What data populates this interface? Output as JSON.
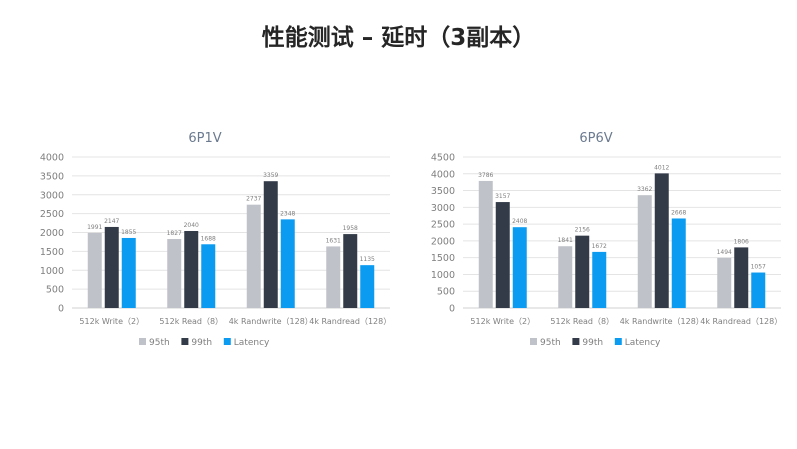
{
  "page": {
    "title": "性能测试 – 延时（3副本）"
  },
  "colors": {
    "p95": "#bfc2c8",
    "p99": "#333b49",
    "latency": "#0b9cf2",
    "grid": "#e4e4e4",
    "axis": "#d0d0d0",
    "text": "#7f7f7f",
    "chart_title": "#6b7a8f"
  },
  "chart_data": [
    {
      "type": "bar",
      "title": "6P1V",
      "categories": [
        "512k Write（2）",
        "512k Read（8）",
        "4k Randwrite（128）",
        "4k Randread（128）"
      ],
      "series": [
        {
          "name": "95th",
          "values": [
            1991,
            1827,
            2737,
            1631
          ]
        },
        {
          "name": "99th",
          "values": [
            2147,
            2040,
            3359,
            1958
          ]
        },
        {
          "name": "Latency",
          "values": [
            1855,
            1688,
            2348,
            1135
          ]
        }
      ],
      "yticks": [
        "0",
        "500",
        "1000",
        "1500",
        "2000",
        "2500",
        "3000",
        "3500",
        "4000"
      ],
      "ylim": [
        0,
        4000
      ],
      "grid": true,
      "legend": "bottom"
    },
    {
      "type": "bar",
      "title": "6P6V",
      "categories": [
        "512k Write（2）",
        "512k Read（8）",
        "4k Randwrite（128）",
        "4k Randread（128）"
      ],
      "series": [
        {
          "name": "95th",
          "values": [
            3786,
            1841,
            3362,
            1494
          ]
        },
        {
          "name": "99th",
          "values": [
            3157,
            2156,
            4012,
            1806
          ]
        },
        {
          "name": "Latency",
          "values": [
            2408,
            1672,
            2668,
            1057
          ]
        }
      ],
      "yticks": [
        "0",
        "500",
        "1000",
        "1500",
        "2000",
        "2500",
        "3000",
        "3500",
        "4000",
        "4500"
      ],
      "ylim": [
        0,
        4500
      ],
      "grid": true,
      "legend": "bottom"
    }
  ]
}
